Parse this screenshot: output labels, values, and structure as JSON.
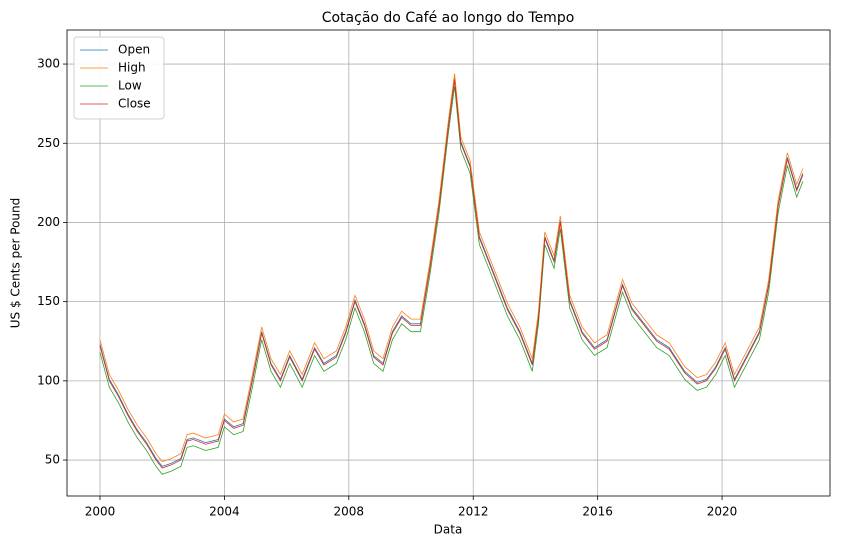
{
  "chart_data": {
    "type": "line",
    "title": "Cotação do Café ao longo do Tempo",
    "x_label": "Data",
    "y_label": "US $ Cents per Pound",
    "x": [
      2000.0,
      2000.3,
      2000.6,
      2000.9,
      2001.2,
      2001.5,
      2001.8,
      2002.0,
      2002.3,
      2002.6,
      2002.8,
      2003.0,
      2003.4,
      2003.8,
      2004.0,
      2004.3,
      2004.6,
      2004.9,
      2005.2,
      2005.5,
      2005.8,
      2006.1,
      2006.5,
      2006.9,
      2007.2,
      2007.6,
      2007.9,
      2008.2,
      2008.5,
      2008.8,
      2009.1,
      2009.4,
      2009.7,
      2010.0,
      2010.3,
      2010.6,
      2010.9,
      2011.2,
      2011.4,
      2011.6,
      2011.9,
      2012.2,
      2012.5,
      2012.8,
      2013.1,
      2013.5,
      2013.9,
      2014.1,
      2014.3,
      2014.6,
      2014.8,
      2015.1,
      2015.5,
      2015.9,
      2016.3,
      2016.8,
      2017.1,
      2017.5,
      2017.9,
      2018.3,
      2018.8,
      2019.2,
      2019.5,
      2019.8,
      2020.1,
      2020.4,
      2020.8,
      2021.2,
      2021.5,
      2021.8,
      2022.1,
      2022.4,
      2022.6
    ],
    "series": [
      {
        "name": "Open",
        "color": "#1f77b4",
        "values": [
          123,
          101,
          91,
          79,
          69,
          61,
          51,
          46,
          48,
          51,
          63,
          64,
          61,
          63,
          76,
          71,
          73,
          101,
          131,
          111,
          101,
          116,
          101,
          121,
          111,
          116,
          131,
          151,
          136,
          116,
          111,
          131,
          141,
          136,
          136,
          171,
          211,
          261,
          291,
          251,
          236,
          191,
          176,
          161,
          146,
          131,
          111,
          141,
          191,
          176,
          201,
          151,
          131,
          121,
          126,
          161,
          146,
          136,
          126,
          121,
          106,
          99,
          101,
          109,
          121,
          101,
          116,
          131,
          161,
          211,
          241,
          221,
          231
        ]
      },
      {
        "name": "High",
        "color": "#ff7f0e",
        "values": [
          126,
          104,
          94,
          82,
          72,
          64,
          54,
          49,
          51,
          54,
          66,
          67,
          64,
          66,
          79,
          74,
          76,
          104,
          134,
          114,
          104,
          119,
          104,
          124,
          114,
          119,
          134,
          154,
          139,
          119,
          114,
          134,
          144,
          139,
          139,
          174,
          214,
          264,
          294,
          254,
          239,
          194,
          179,
          164,
          149,
          134,
          114,
          144,
          194,
          179,
          204,
          154,
          134,
          124,
          129,
          164,
          149,
          139,
          129,
          124,
          109,
          102,
          104,
          112,
          124,
          104,
          119,
          134,
          164,
          214,
          244,
          224,
          234
        ]
      },
      {
        "name": "Low",
        "color": "#2ca02c",
        "values": [
          118,
          96,
          86,
          74,
          64,
          56,
          46,
          41,
          43,
          46,
          58,
          59,
          56,
          58,
          71,
          66,
          68,
          96,
          126,
          106,
          96,
          111,
          96,
          116,
          106,
          111,
          126,
          146,
          131,
          111,
          106,
          126,
          136,
          131,
          131,
          166,
          206,
          256,
          286,
          246,
          231,
          186,
          171,
          156,
          141,
          126,
          106,
          136,
          186,
          171,
          196,
          146,
          126,
          116,
          121,
          156,
          141,
          131,
          121,
          116,
          101,
          94,
          96,
          104,
          116,
          96,
          111,
          126,
          156,
          206,
          236,
          216,
          226
        ]
      },
      {
        "name": "Close",
        "color": "#d62728",
        "values": [
          122,
          100,
          90,
          78,
          68,
          60,
          50,
          45,
          47,
          50,
          62,
          63,
          60,
          62,
          75,
          70,
          72,
          100,
          130,
          110,
          100,
          115,
          100,
          120,
          110,
          115,
          130,
          150,
          135,
          115,
          110,
          130,
          140,
          135,
          135,
          170,
          210,
          260,
          290,
          250,
          235,
          190,
          175,
          160,
          145,
          130,
          110,
          140,
          190,
          175,
          200,
          150,
          130,
          120,
          125,
          160,
          145,
          135,
          125,
          120,
          105,
          98,
          100,
          108,
          120,
          100,
          115,
          130,
          160,
          210,
          240,
          220,
          230
        ]
      }
    ],
    "xlim": [
      1998.94,
      2023.47
    ],
    "xticks": [
      2000,
      2004,
      2008,
      2012,
      2016,
      2020
    ],
    "ylim": [
      27.3,
      321.5
    ],
    "yticks": [
      50,
      100,
      150,
      200,
      250,
      300
    ],
    "grid": true,
    "legend": "upper-left"
  }
}
